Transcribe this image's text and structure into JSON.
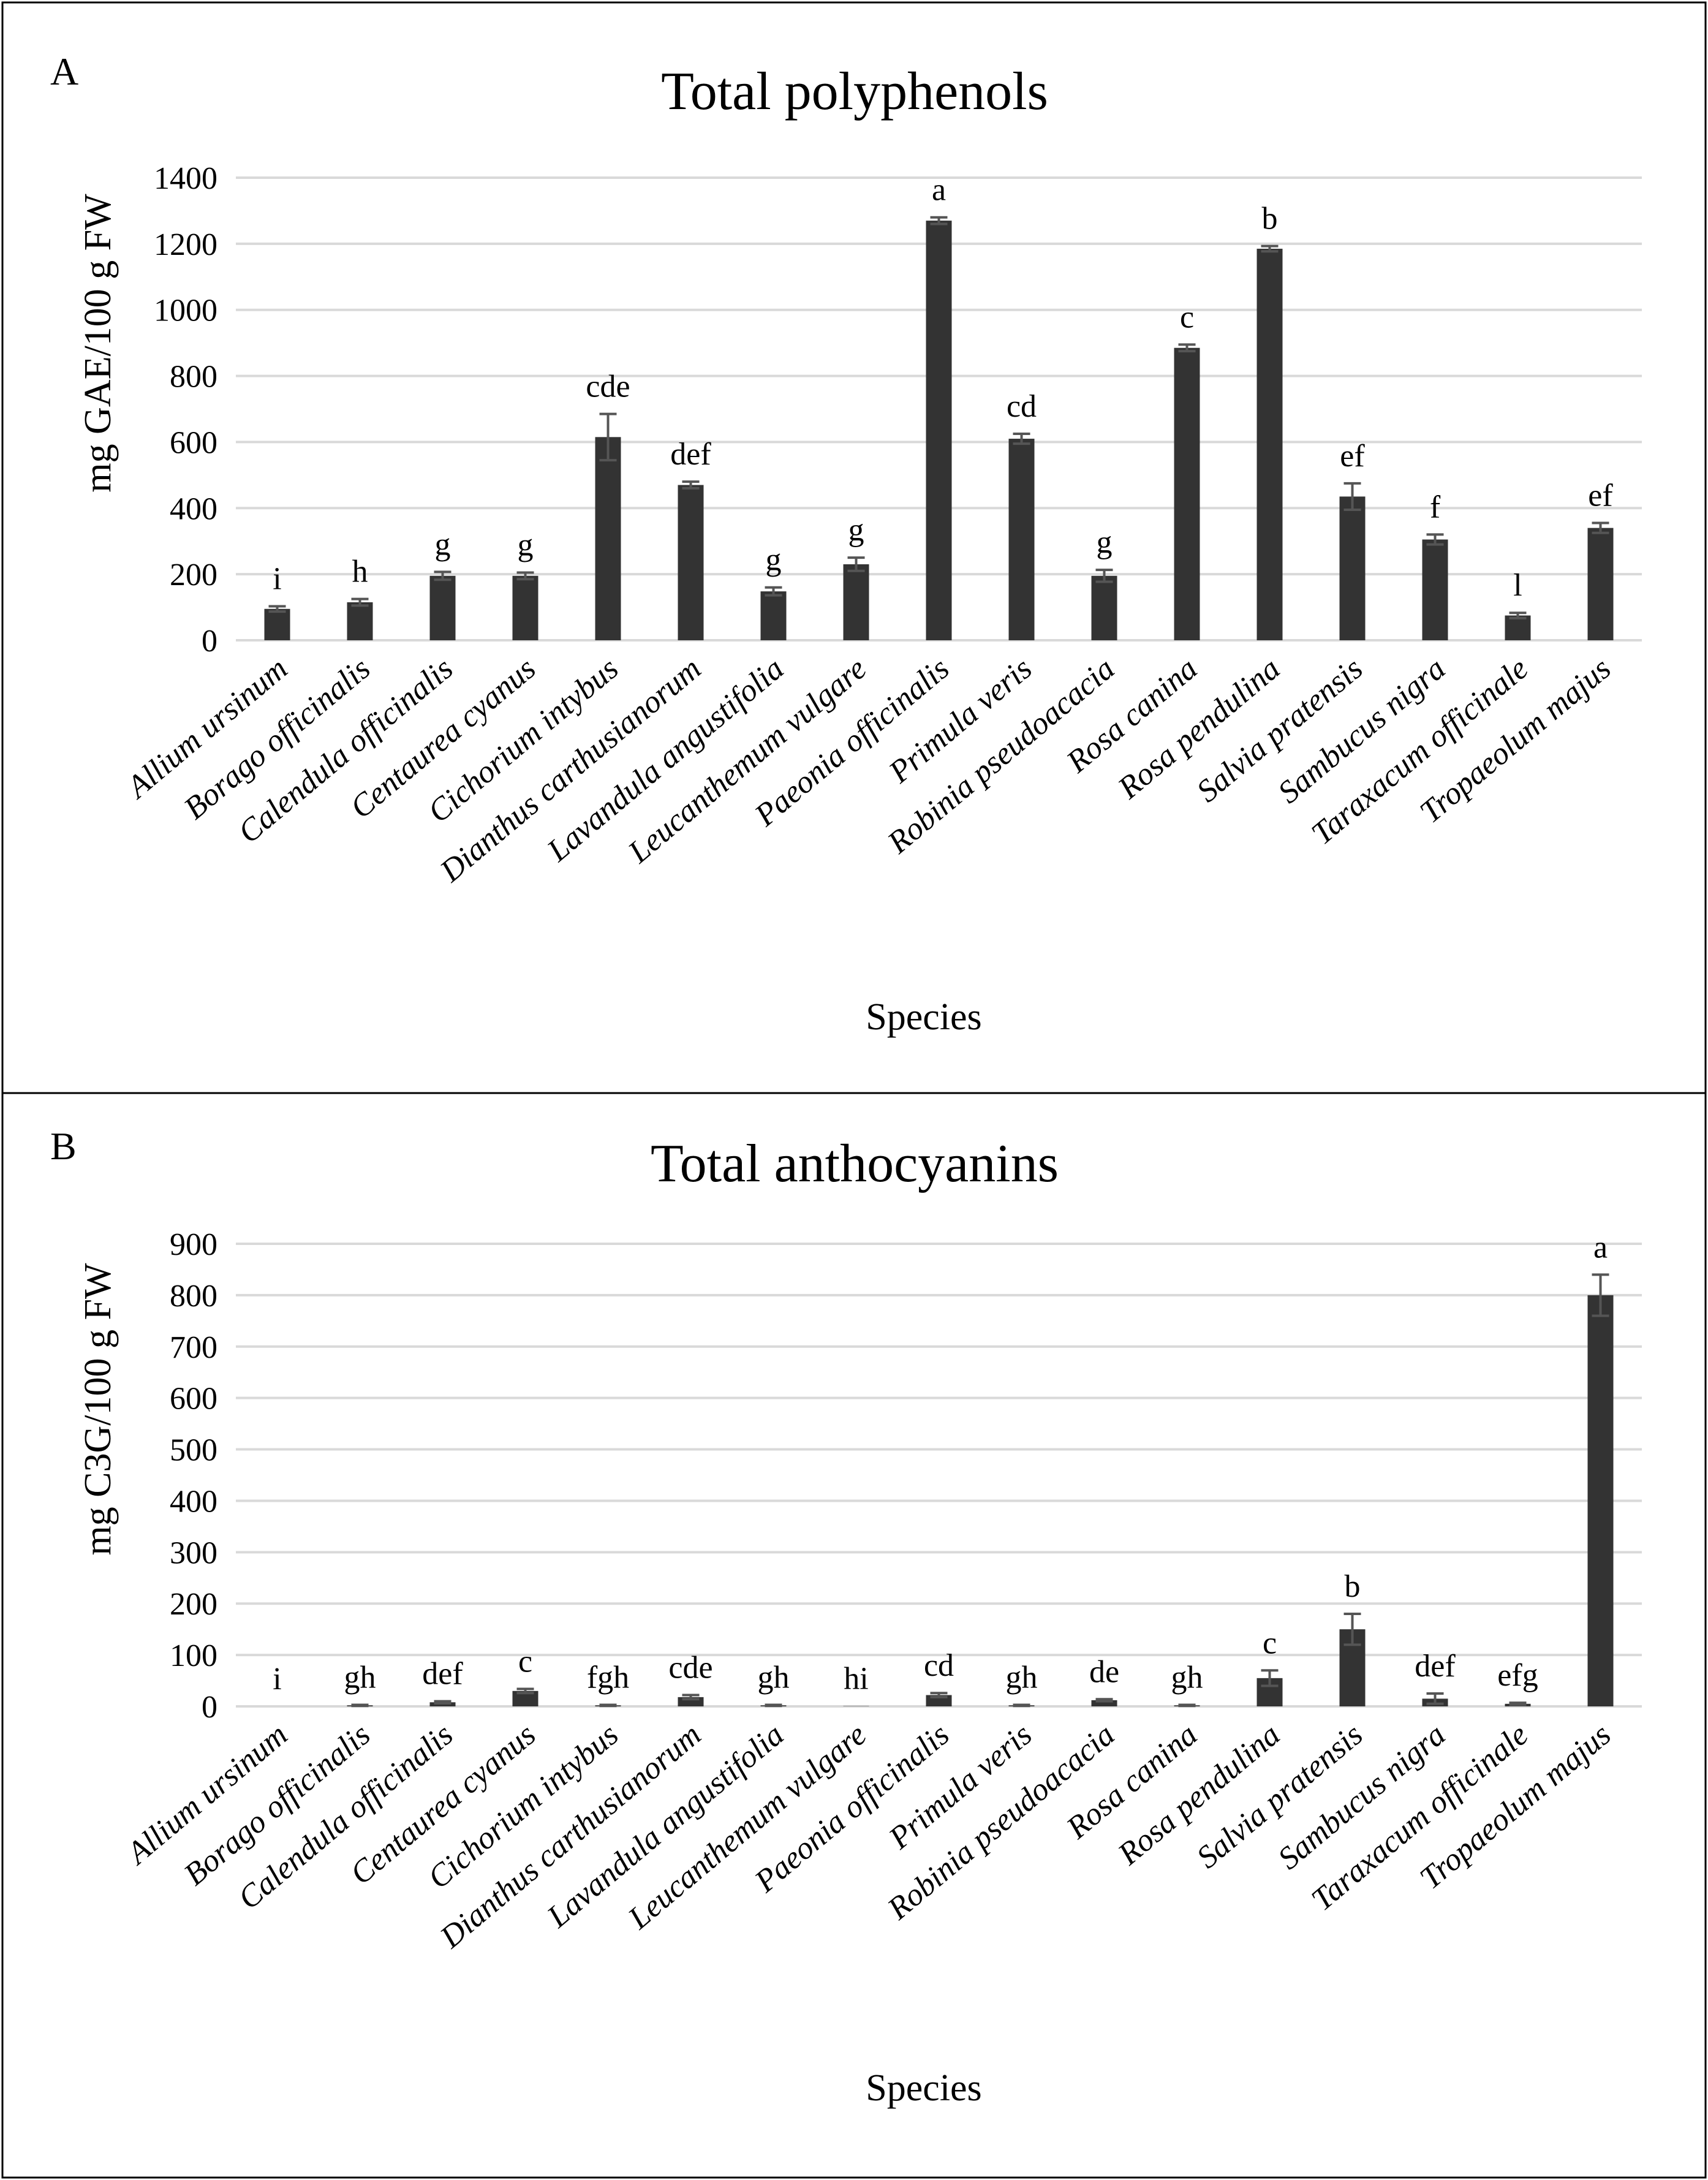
{
  "chart_data": [
    {
      "panel": "A",
      "type": "bar",
      "title": "Total polyphenols",
      "xlabel": "Species",
      "ylabel": "mg GAE/100 g FW",
      "ylim": [
        0,
        1400
      ],
      "yticks": [
        0,
        200,
        400,
        600,
        800,
        1000,
        1200,
        1400
      ],
      "grid": true,
      "categories": [
        "Allium ursinum",
        "Borago officinalis",
        "Calendula officinalis",
        "Centaurea cyanus",
        "Cichorium intybus",
        "Dianthus carthusianorum",
        "Lavandula angustifolia",
        "Leucanthemum vulgare",
        "Paeonia officinalis",
        "Primula veris",
        "Robinia pseudoacacia",
        "Rosa canina",
        "Rosa pendulina",
        "Salvia pratensis",
        "Sambucus nigra",
        "Taraxacum officinale",
        "Tropaeolum majus"
      ],
      "values": [
        95,
        115,
        195,
        195,
        615,
        470,
        148,
        230,
        1270,
        610,
        195,
        885,
        1185,
        435,
        305,
        75,
        340
      ],
      "errors": [
        8,
        10,
        12,
        10,
        70,
        10,
        12,
        20,
        10,
        15,
        18,
        10,
        8,
        40,
        15,
        8,
        15
      ],
      "significance": [
        "i",
        "h",
        "g",
        "g",
        "cde",
        "def",
        "g",
        "g",
        "a",
        "cd",
        "g",
        "c",
        "b",
        "ef",
        "f",
        "l",
        "ef"
      ]
    },
    {
      "panel": "B",
      "type": "bar",
      "title": "Total anthocyanins",
      "xlabel": "Species",
      "ylabel": "mg C3G/100 g FW",
      "ylim": [
        0,
        900
      ],
      "yticks": [
        0,
        100,
        200,
        300,
        400,
        500,
        600,
        700,
        800,
        900
      ],
      "grid": true,
      "categories": [
        "Allium ursinum",
        "Borago officinalis",
        "Calendula officinalis",
        "Centaurea cyanus",
        "Cichorium intybus",
        "Dianthus carthusianorum",
        "Lavandula angustifolia",
        "Leucanthemum vulgare",
        "Paeonia officinalis",
        "Primula veris",
        "Robinia pseudoacacia",
        "Rosa canina",
        "Rosa pendulina",
        "Salvia pratensis",
        "Sambucus nigra",
        "Taraxacum officinale",
        "Tropaeolum majus"
      ],
      "values": [
        0,
        2,
        8,
        30,
        2,
        18,
        2,
        0.5,
        22,
        2,
        12,
        2,
        55,
        150,
        15,
        5,
        800
      ],
      "errors": [
        0,
        1,
        2,
        4,
        1,
        4,
        1,
        0,
        4,
        1,
        2,
        1,
        15,
        30,
        10,
        2,
        40
      ],
      "significance": [
        "i",
        "gh",
        "def",
        "c",
        "fgh",
        "cde",
        "gh",
        "hi",
        "cd",
        "gh",
        "de",
        "gh",
        "c",
        "b",
        "def",
        "efg",
        "a"
      ]
    }
  ]
}
